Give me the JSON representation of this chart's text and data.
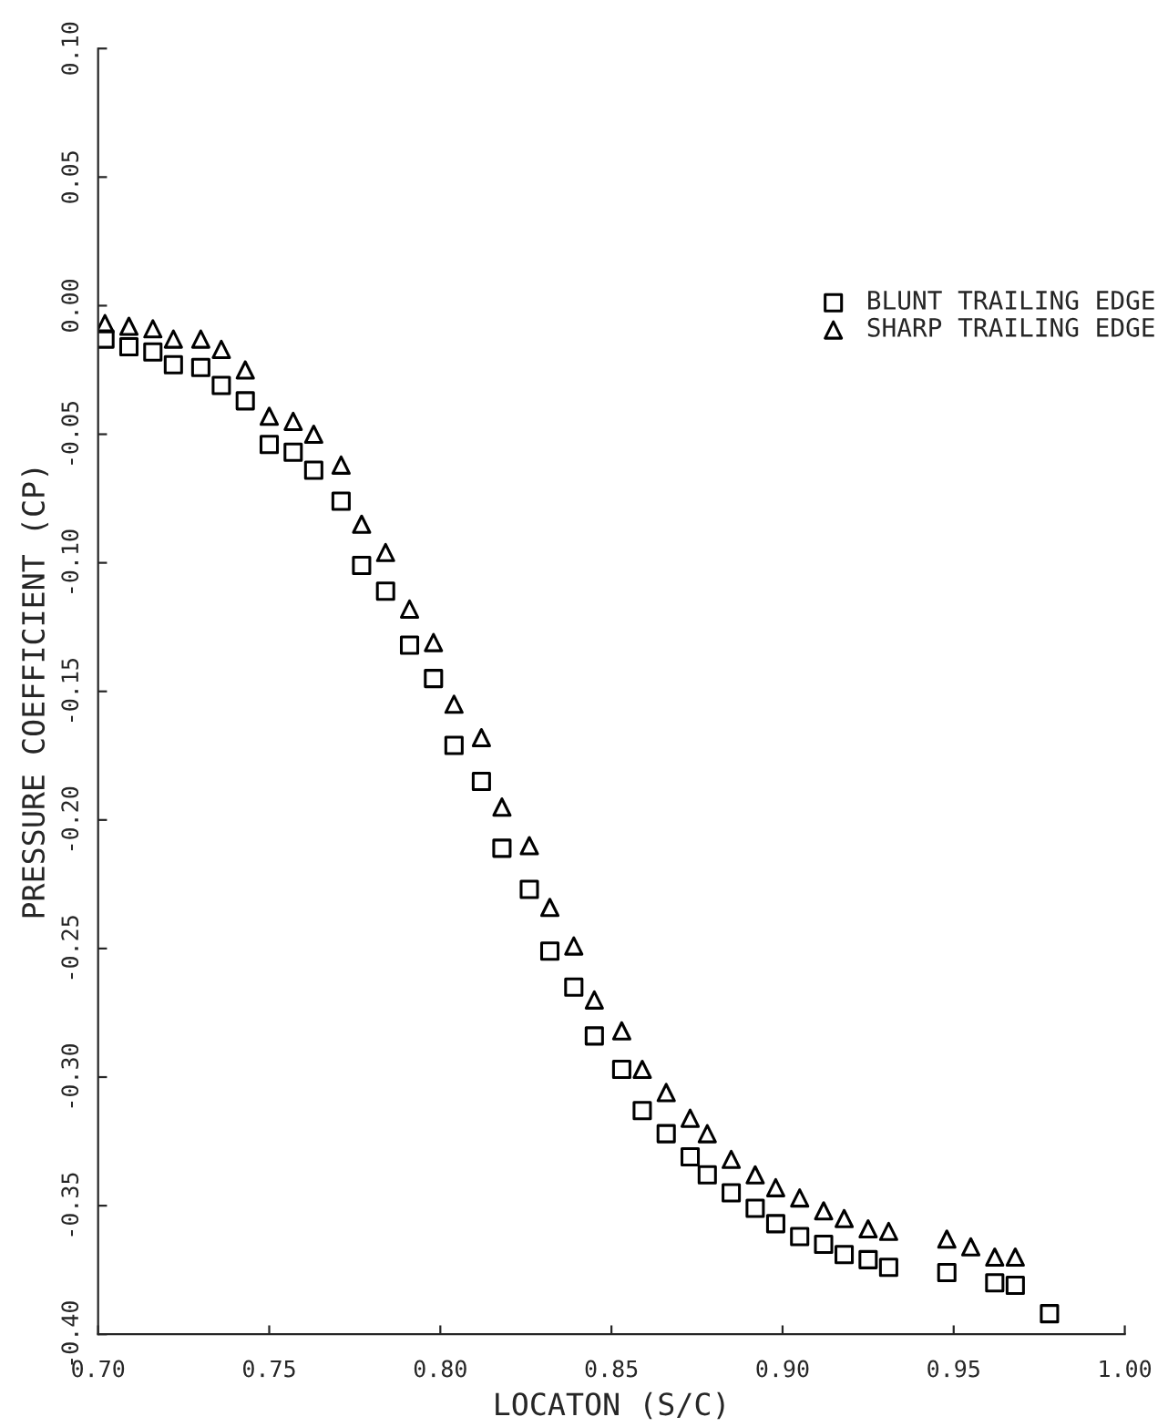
{
  "chart_data": {
    "type": "scatter",
    "xlabel": "LOCATON (S/C)",
    "ylabel": "PRESSURE COEFFICIENT (CP)",
    "xlim": [
      0.7,
      1.0
    ],
    "xticks": [
      {
        "value": 0.7,
        "label": "0.70"
      },
      {
        "value": 0.75,
        "label": "0.75"
      },
      {
        "value": 0.8,
        "label": "0.80"
      },
      {
        "value": 0.85,
        "label": "0.85"
      },
      {
        "value": 0.9,
        "label": "0.90"
      },
      {
        "value": 0.95,
        "label": "0.95"
      },
      {
        "value": 1.0,
        "label": "1.00"
      }
    ],
    "ylim": [
      -0.4,
      0.1
    ],
    "yticks": [
      {
        "value": -0.4,
        "label": "-0.40"
      },
      {
        "value": -0.35,
        "label": "-0.35"
      },
      {
        "value": -0.3,
        "label": "-0.30"
      },
      {
        "value": -0.25,
        "label": "-0.25"
      },
      {
        "value": -0.2,
        "label": "-0.20"
      },
      {
        "value": -0.15,
        "label": "-0.15"
      },
      {
        "value": -0.1,
        "label": "-0.10"
      },
      {
        "value": -0.05,
        "label": "-0.05"
      },
      {
        "value": 0.0,
        "label": "0.00"
      },
      {
        "value": 0.05,
        "label": "0.05"
      },
      {
        "value": 0.1,
        "label": "0.10"
      }
    ],
    "grid": false,
    "legend": "top right",
    "series": [
      {
        "name": "BLUNT TRAILING EDGE",
        "color": "#000000",
        "marker": "square",
        "x": [
          0.702,
          0.709,
          0.716,
          0.722,
          0.73,
          0.736,
          0.743,
          0.75,
          0.757,
          0.763,
          0.771,
          0.777,
          0.784,
          0.791,
          0.798,
          0.804,
          0.812,
          0.818,
          0.826,
          0.832,
          0.839,
          0.845,
          0.853,
          0.859,
          0.866,
          0.873,
          0.878,
          0.885,
          0.892,
          0.898,
          0.905,
          0.912,
          0.918,
          0.925,
          0.931,
          0.948,
          0.962,
          0.968,
          0.978
        ],
        "values": [
          -0.013,
          -0.016,
          -0.018,
          -0.023,
          -0.024,
          -0.031,
          -0.037,
          -0.054,
          -0.057,
          -0.064,
          -0.076,
          -0.101,
          -0.111,
          -0.132,
          -0.145,
          -0.171,
          -0.185,
          -0.211,
          -0.227,
          -0.251,
          -0.265,
          -0.284,
          -0.297,
          -0.313,
          -0.322,
          -0.331,
          -0.338,
          -0.345,
          -0.351,
          -0.357,
          -0.362,
          -0.365,
          -0.369,
          -0.371,
          -0.374,
          -0.376,
          -0.38,
          -0.381,
          -0.392
        ]
      },
      {
        "name": "SHARP TRAILING EDGE",
        "color": "#000000",
        "marker": "triangle",
        "x": [
          0.702,
          0.709,
          0.716,
          0.722,
          0.73,
          0.736,
          0.743,
          0.75,
          0.757,
          0.763,
          0.771,
          0.777,
          0.784,
          0.791,
          0.798,
          0.804,
          0.812,
          0.818,
          0.826,
          0.832,
          0.839,
          0.845,
          0.853,
          0.859,
          0.866,
          0.873,
          0.878,
          0.885,
          0.892,
          0.898,
          0.905,
          0.912,
          0.918,
          0.925,
          0.931,
          0.948,
          0.955,
          0.962,
          0.968
        ],
        "values": [
          -0.007,
          -0.008,
          -0.009,
          -0.013,
          -0.013,
          -0.017,
          -0.025,
          -0.043,
          -0.045,
          -0.05,
          -0.062,
          -0.085,
          -0.096,
          -0.118,
          -0.131,
          -0.155,
          -0.168,
          -0.195,
          -0.21,
          -0.234,
          -0.249,
          -0.27,
          -0.282,
          -0.297,
          -0.306,
          -0.316,
          -0.322,
          -0.332,
          -0.338,
          -0.343,
          -0.347,
          -0.352,
          -0.355,
          -0.359,
          -0.36,
          -0.363,
          -0.366,
          -0.37,
          -0.37
        ]
      }
    ]
  }
}
